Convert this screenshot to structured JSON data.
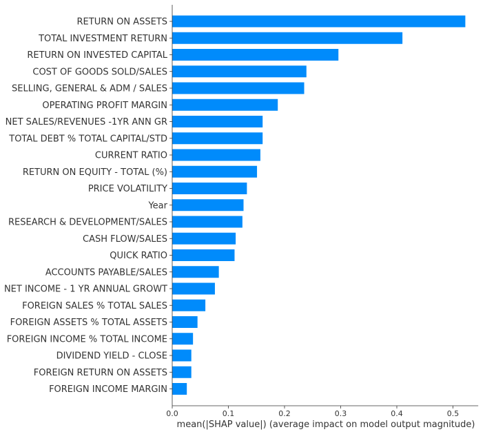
{
  "chart_data": {
    "type": "bar",
    "orientation": "horizontal",
    "categories": [
      "RETURN ON ASSETS",
      "TOTAL INVESTMENT RETURN",
      "RETURN ON INVESTED CAPITAL",
      "COST OF GOODS SOLD/SALES",
      "SELLING, GENERAL & ADM / SALES",
      "OPERATING PROFIT MARGIN",
      "NET SALES/REVENUES -1YR ANN GR",
      "TOTAL DEBT % TOTAL CAPITAL/STD",
      "CURRENT RATIO",
      "RETURN ON EQUITY - TOTAL (%)",
      "PRICE VOLATILITY",
      "Year",
      "RESEARCH & DEVELOPMENT/SALES",
      "CASH FLOW/SALES",
      "QUICK RATIO",
      "ACCOUNTS PAYABLE/SALES",
      "NET INCOME - 1 YR ANNUAL GROWT",
      "FOREIGN SALES % TOTAL SALES",
      "FOREIGN ASSETS % TOTAL ASSETS",
      "FOREIGN INCOME % TOTAL INCOME",
      "DIVIDEND YIELD - CLOSE",
      "FOREIGN RETURN ON ASSETS",
      "FOREIGN INCOME MARGIN"
    ],
    "values": [
      0.522,
      0.41,
      0.296,
      0.239,
      0.235,
      0.188,
      0.161,
      0.161,
      0.157,
      0.151,
      0.133,
      0.127,
      0.125,
      0.113,
      0.111,
      0.083,
      0.076,
      0.059,
      0.045,
      0.037,
      0.034,
      0.034,
      0.026
    ],
    "xlabel": "mean(|SHAP value|) (average impact on model output magnitude)",
    "ylabel": "",
    "title": "",
    "xlim": [
      0,
      0.545
    ],
    "xticks": [
      0.0,
      0.1,
      0.2,
      0.3,
      0.4,
      0.5
    ],
    "xtick_labels": [
      "0.0",
      "0.1",
      "0.2",
      "0.3",
      "0.4",
      "0.5"
    ],
    "bar_color": "#008bfb",
    "axis_color": "#333333",
    "grid": false,
    "legend": "none"
  }
}
